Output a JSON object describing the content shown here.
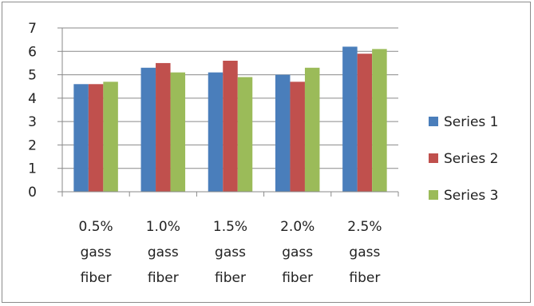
{
  "chart_data": {
    "type": "bar",
    "categories": [
      [
        "0.5%",
        "gass",
        "fiber"
      ],
      [
        "1.0%",
        "gass",
        "fiber"
      ],
      [
        "1.5%",
        "gass",
        "fiber"
      ],
      [
        "2.0%",
        "gass",
        "fiber"
      ],
      [
        "2.5%",
        "gass",
        "fiber"
      ]
    ],
    "series": [
      {
        "name": "Series 1",
        "color": "#4a7ebb",
        "values": [
          4.6,
          5.3,
          5.1,
          5.0,
          6.2
        ]
      },
      {
        "name": "Series 2",
        "color": "#c0504d",
        "values": [
          4.6,
          5.5,
          5.6,
          4.7,
          5.9
        ]
      },
      {
        "name": "Series 3",
        "color": "#9bbb59",
        "values": [
          4.7,
          5.1,
          4.9,
          5.3,
          6.1
        ]
      }
    ],
    "ylim": [
      0,
      7
    ],
    "yticks": [
      0,
      1,
      2,
      3,
      4,
      5,
      6,
      7
    ],
    "grid": true,
    "legend_position": "right",
    "title": "",
    "xlabel": "",
    "ylabel": ""
  }
}
